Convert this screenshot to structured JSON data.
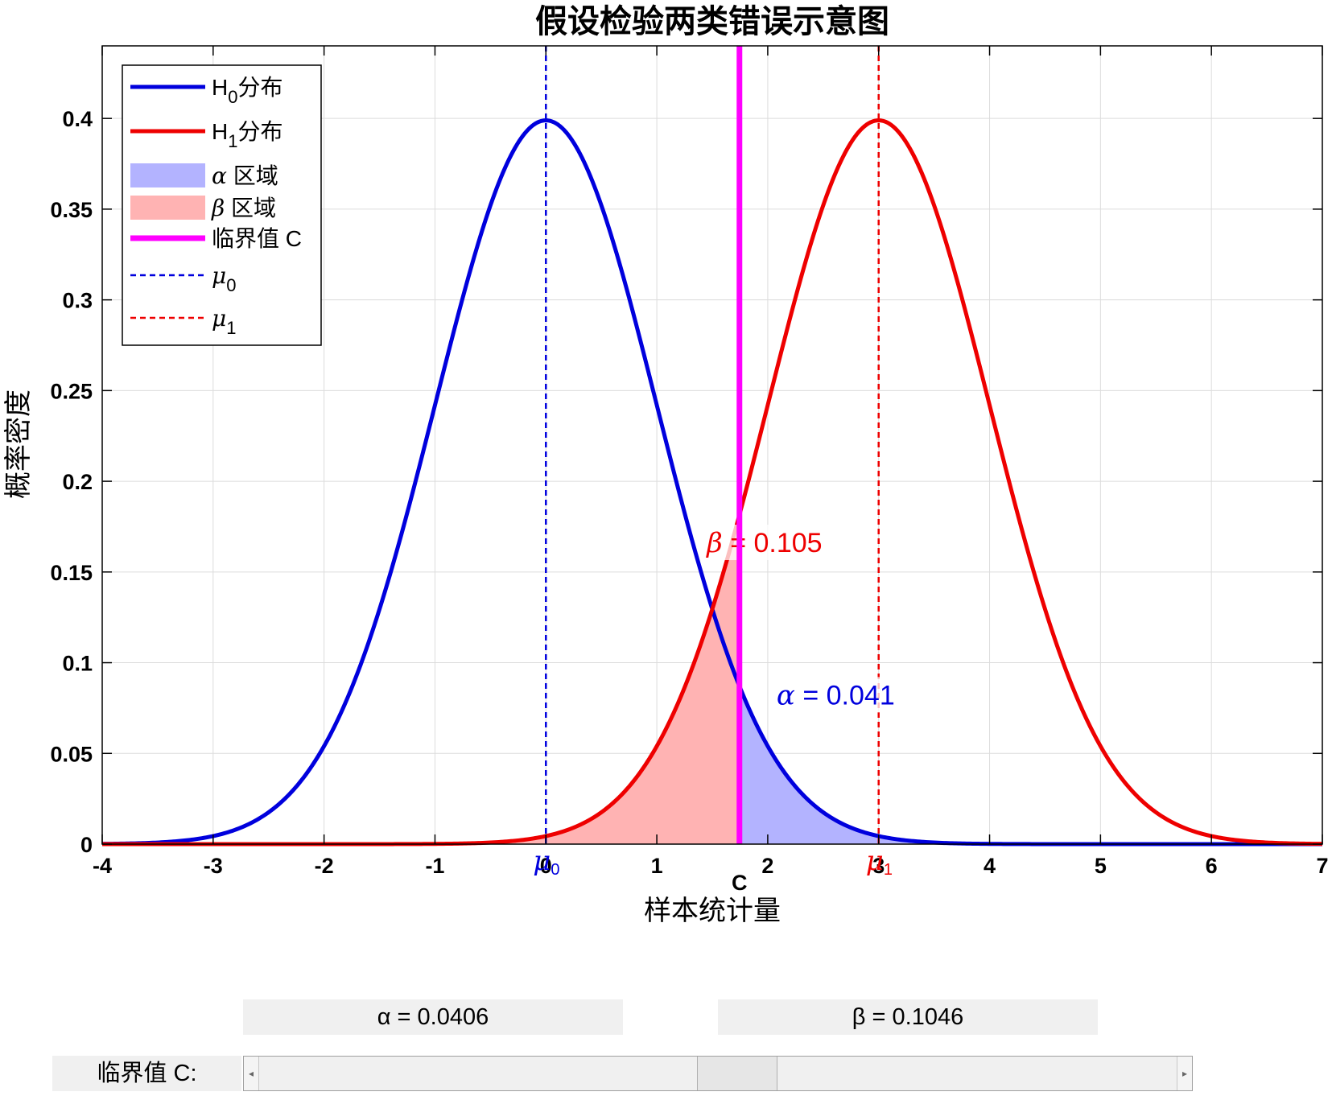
{
  "chart_data": {
    "type": "line",
    "title": "假设检验两类错误示意图",
    "xlabel": "样本统计量",
    "ylabel": "概率密度",
    "xlim": [
      -4,
      7
    ],
    "ylim": [
      0,
      0.44
    ],
    "x_ticks": [
      "-4",
      "-3",
      "-2",
      "-1",
      "0",
      "1",
      "2",
      "3",
      "4",
      "5",
      "6",
      "7"
    ],
    "y_ticks": [
      "0",
      "0.05",
      "0.1",
      "0.15",
      "0.2",
      "0.25",
      "0.3",
      "0.35",
      "0.4"
    ],
    "grid": true,
    "legend_position": "top-left",
    "series": [
      {
        "name": "H0分布",
        "distribution": "normal",
        "mean": 0,
        "sd": 1,
        "color": "#0000dd"
      },
      {
        "name": "H1分布",
        "distribution": "normal",
        "mean": 3,
        "sd": 1,
        "color": "#ee0000"
      }
    ],
    "legend": [
      {
        "label": "H",
        "sub": "0",
        "suffix": "分布",
        "kind": "line",
        "color": "#0000dd"
      },
      {
        "label": "H",
        "sub": "1",
        "suffix": "分布",
        "kind": "line",
        "color": "#ee0000"
      },
      {
        "label": "α",
        "sub": "",
        "suffix": " 区域",
        "kind": "patch",
        "color": "#b3b3ff"
      },
      {
        "label": "β",
        "sub": "",
        "suffix": " 区域",
        "kind": "patch",
        "color": "#ffb3b3"
      },
      {
        "label": "临界值 C",
        "sub": "",
        "suffix": "",
        "kind": "thick",
        "color": "#ff00ff"
      },
      {
        "label": "μ",
        "sub": "0",
        "suffix": "",
        "kind": "dash",
        "color": "#0000dd"
      },
      {
        "label": "μ",
        "sub": "1",
        "suffix": "",
        "kind": "dash",
        "color": "#ee0000"
      }
    ],
    "critical_value": 1.745,
    "regions": {
      "alpha": {
        "from": 1.745,
        "to": 7,
        "under": "H0",
        "color": "#b3b3ff"
      },
      "beta": {
        "from": -4,
        "to": 1.745,
        "under": "H1",
        "color": "#ffb3b3"
      }
    },
    "annotations": [
      {
        "symbol": "β",
        "text": " = 0.105",
        "x": 1.45,
        "y": 0.161,
        "color": "#ee0000"
      },
      {
        "symbol": "α",
        "text": " = 0.041",
        "x": 2.08,
        "y": 0.077,
        "color": "#0000dd"
      }
    ],
    "axis_markers": [
      {
        "symbol": "μ",
        "sub": "0",
        "x": 0,
        "color": "#0000dd"
      },
      {
        "symbol": "μ",
        "sub": "1",
        "x": 3,
        "color": "#ee0000"
      },
      {
        "symbol": "C",
        "sub": "",
        "x": 1.745,
        "color": "#ff00ff"
      }
    ]
  },
  "controls": {
    "alpha_text": "α = 0.0406",
    "beta_text": "β = 0.1046",
    "slider_label": "临界值 C:",
    "slider_min": -4,
    "slider_max": 7,
    "slider_value": 1.745
  }
}
